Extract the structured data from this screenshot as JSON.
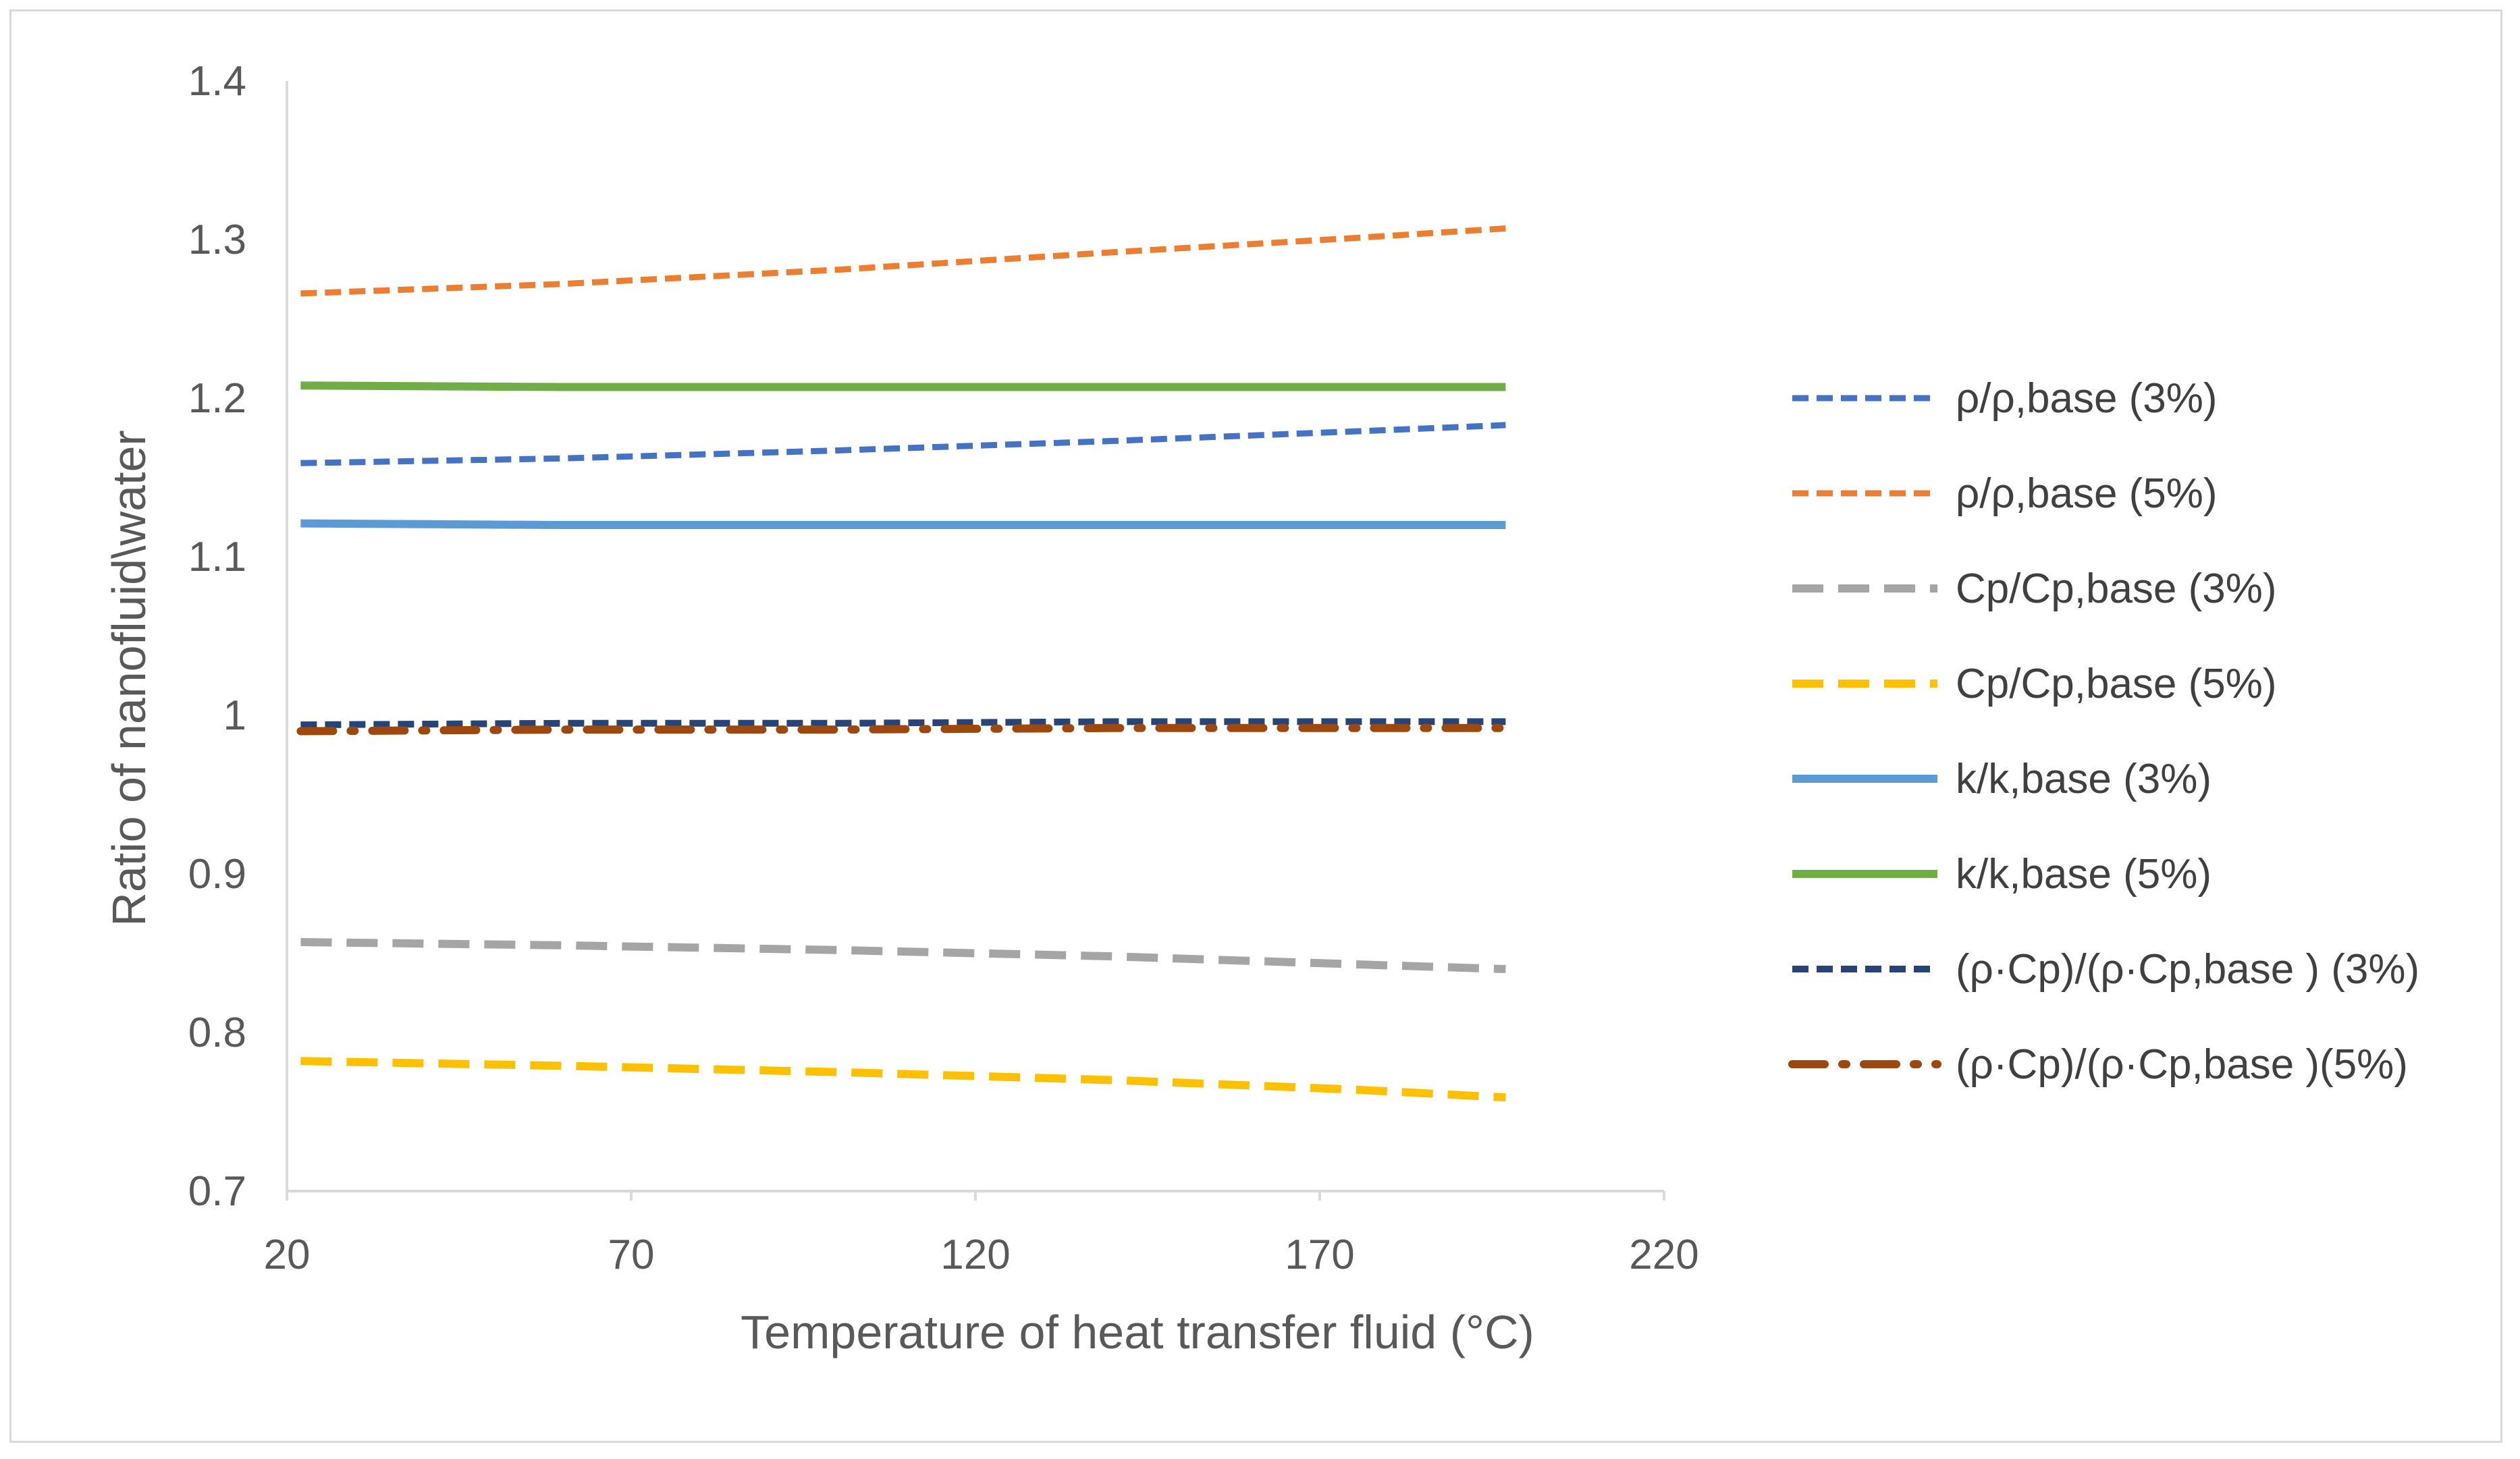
{
  "chart_data": {
    "type": "line",
    "title": "",
    "xlabel": "Temperature of heat transfer fluid (°C)",
    "ylabel": "Ratio of nanofluid\\water",
    "xlim": [
      20,
      220
    ],
    "ylim": [
      0.7,
      1.4
    ],
    "xticks": [
      20,
      70,
      120,
      170,
      220
    ],
    "yticks": [
      0.7,
      0.8,
      0.9,
      1,
      1.1,
      1.2,
      1.3,
      1.4
    ],
    "xtick_labels": [
      "20",
      "70",
      "120",
      "170",
      "220"
    ],
    "ytick_labels": [
      "0.7",
      "0.8",
      "0.9",
      "1",
      "1.1",
      "1.2",
      "1.3",
      "1.4"
    ],
    "grid": false,
    "legend_position": "right",
    "x": [
      22,
      60,
      100,
      140,
      175,
      197
    ],
    "series": [
      {
        "name": "ρ/ρ,base (3%)",
        "color": "#4472c4",
        "style": "short-dash",
        "width": 9,
        "values": [
          1.159,
          1.162,
          1.167,
          1.173,
          1.179,
          1.183
        ]
      },
      {
        "name": "ρ/ρ,base (5%)",
        "color": "#ed7d31",
        "style": "short-dash",
        "width": 9,
        "values": [
          1.266,
          1.272,
          1.281,
          1.292,
          1.301,
          1.307
        ]
      },
      {
        "name": "Cp/Cp,base (3%)",
        "color": "#a5a5a5",
        "style": "long-dash",
        "width": 12,
        "values": [
          0.857,
          0.855,
          0.852,
          0.848,
          0.843,
          0.84
        ]
      },
      {
        "name": "Cp/Cp,base (5%)",
        "color": "#ffc000",
        "style": "long-dash",
        "width": 12,
        "values": [
          0.782,
          0.779,
          0.775,
          0.77,
          0.764,
          0.759
        ]
      },
      {
        "name": "k/k,base (3%)",
        "color": "#5b9bd5",
        "style": "solid",
        "width": 12,
        "values": [
          1.121,
          1.12,
          1.12,
          1.12,
          1.12,
          1.12
        ]
      },
      {
        "name": "k/k,base (5%)",
        "color": "#70ad47",
        "style": "solid",
        "width": 12,
        "values": [
          1.208,
          1.207,
          1.207,
          1.207,
          1.207,
          1.207
        ]
      },
      {
        "name": "(ρ·Cp)/(ρ·Cp,base ) (3%)",
        "color": "#264478",
        "style": "short-dash",
        "width": 10,
        "values": [
          0.994,
          0.995,
          0.995,
          0.996,
          0.996,
          0.996
        ]
      },
      {
        "name": "(ρ·Cp)/(ρ·Cp,base )(5%)",
        "color": "#9e480e",
        "style": "dash-dot",
        "width": 12,
        "values": [
          0.99,
          0.991,
          0.991,
          0.992,
          0.992,
          0.992
        ]
      }
    ]
  }
}
